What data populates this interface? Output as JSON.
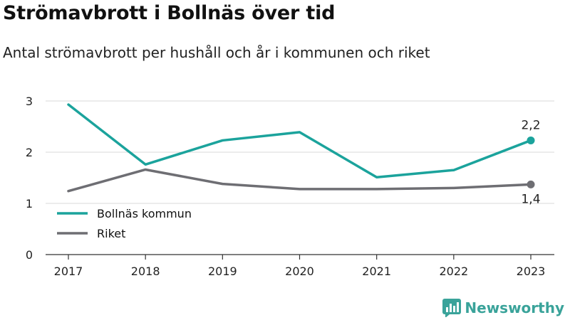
{
  "title": "Strömavbrott i Bollnäs över tid",
  "subtitle": "Antal strömavbrott per hushåll och år i kommunen och riket",
  "brand": "Newsworthy",
  "brand_icon": "bar-chart-logo-icon",
  "chart_data": {
    "type": "line",
    "x": [
      "2017",
      "2018",
      "2019",
      "2020",
      "2021",
      "2022",
      "2023"
    ],
    "ylim": [
      0,
      3
    ],
    "yticks": [
      "0",
      "1",
      "2",
      "3"
    ],
    "grid": true,
    "legend_position": "bottom-left",
    "series": [
      {
        "name": "Bollnäs kommun",
        "color": "#1ba39c",
        "values": [
          2.93,
          1.76,
          2.23,
          2.39,
          1.51,
          1.65,
          2.23
        ],
        "end_label": "2,2"
      },
      {
        "name": "Riket",
        "color": "#6e6e73",
        "values": [
          1.24,
          1.66,
          1.38,
          1.28,
          1.28,
          1.3,
          1.37
        ],
        "end_label": "1,4"
      }
    ]
  }
}
